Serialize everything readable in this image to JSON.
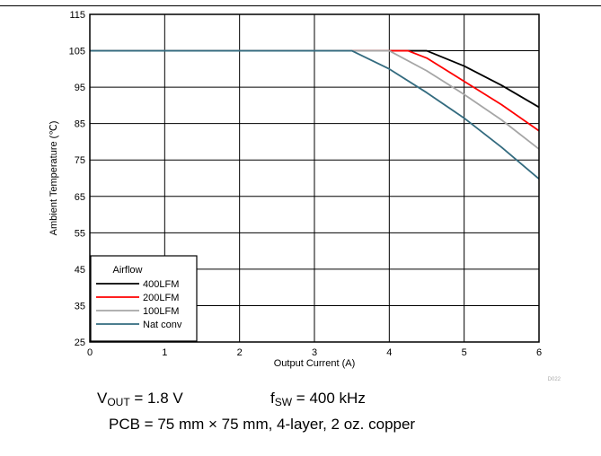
{
  "chart_data": {
    "type": "line",
    "xlabel": "Output Current (A)",
    "ylabel": "Ambient Temperature (℃)",
    "xlim": [
      0,
      6
    ],
    "ylim": [
      25,
      115
    ],
    "xticks": [
      "0",
      "1",
      "2",
      "3",
      "4",
      "5",
      "6"
    ],
    "yticks": [
      "25",
      "35",
      "45",
      "55",
      "65",
      "75",
      "85",
      "95",
      "105",
      "115"
    ],
    "grid": true,
    "legend": {
      "title": "Airflow",
      "placement": "bottom-left"
    },
    "series": [
      {
        "name": "400LFM",
        "color": "#000000",
        "x": [
          0,
          4.5,
          5.0,
          5.5,
          6.0
        ],
        "y": [
          105,
          105,
          100.8,
          95.5,
          89.5
        ]
      },
      {
        "name": "200LFM",
        "color": "#ff0000",
        "x": [
          0,
          4.25,
          4.5,
          5.0,
          5.5,
          6.0
        ],
        "y": [
          105,
          105,
          103,
          96.6,
          90.2,
          83
        ]
      },
      {
        "name": "100LFM",
        "color": "#a6a6a6",
        "x": [
          0,
          4.0,
          4.5,
          5.0,
          5.5,
          6.0
        ],
        "y": [
          105,
          105,
          99.5,
          93,
          86,
          78
        ]
      },
      {
        "name": "Nat conv",
        "color": "#336b7f",
        "x": [
          0,
          3.5,
          4.0,
          4.5,
          5.0,
          5.5,
          6.0
        ],
        "y": [
          105,
          105,
          100,
          93.5,
          86.5,
          78.5,
          69.8
        ]
      }
    ],
    "figure_code": "D022"
  },
  "conditions": {
    "vout_sym": "V",
    "vout_sub": "OUT",
    "vout_val": " = 1.8 V",
    "fsw_sym": "f",
    "fsw_sub": "SW",
    "fsw_val": " = 400 kHz",
    "pcb": "PCB = 75 mm × 75 mm, 4-layer, 2 oz. copper"
  }
}
